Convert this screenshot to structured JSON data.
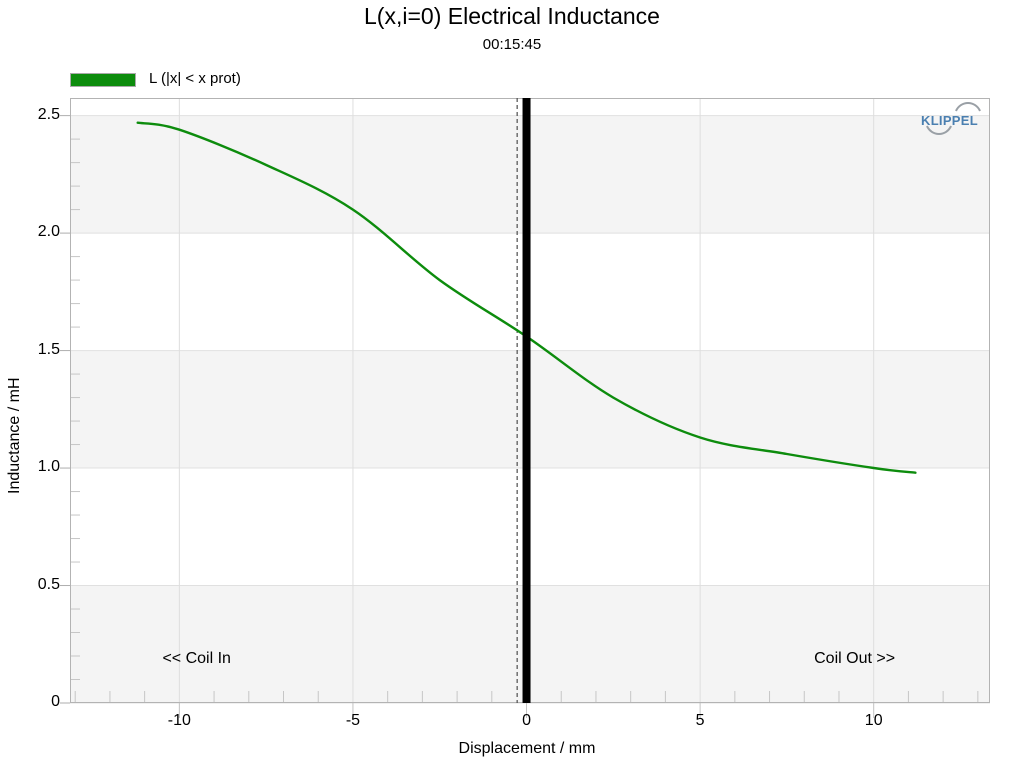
{
  "header": {
    "title": "L(x,i=0) Electrical Inductance",
    "subtitle": "00:15:45"
  },
  "legend": {
    "label": "L (|x| < x prot)",
    "color": "#0d8c0d"
  },
  "logo": {
    "text": "KLIPPEL",
    "text_color": "#4a7fb0",
    "arc_color": "#9aa0a6"
  },
  "annotations": {
    "coil_in": "<< Coil In",
    "coil_out": "Coil Out >>",
    "coil_in_x_mm": -9.5,
    "coil_out_x_mm": 9.45
  },
  "chart_data": {
    "type": "line",
    "title": "L(x,i=0) Electrical Inductance",
    "subtitle": "00:15:45",
    "xlabel": "Displacement / mm",
    "ylabel": "Inductance / mH",
    "xlim": [
      -13.15,
      13.35
    ],
    "ylim": [
      0,
      2.575
    ],
    "x_major_ticks": [
      -10,
      -5,
      0,
      5,
      10
    ],
    "x_tick_labels": [
      "-10",
      "-5",
      "0",
      "5",
      "10"
    ],
    "y_major_ticks": [
      0,
      0.5,
      1.0,
      1.5,
      2.0,
      2.5
    ],
    "y_tick_labels": [
      "0",
      "0.5",
      "1.0",
      "1.5",
      "2.0",
      "2.5"
    ],
    "x_minor_step": 1,
    "y_minor_step": 0.1,
    "grid": true,
    "legend_position": "top-left",
    "shaded_y_bands": [
      [
        2.0,
        2.5
      ],
      [
        1.0,
        1.5
      ],
      [
        0,
        0.5
      ]
    ],
    "markers": {
      "solid_vline_x": 0,
      "dashed_vline_x": -0.27
    },
    "series": [
      {
        "name": "L (|x| < x prot)",
        "color": "#0d8c0d",
        "x": [
          -11.2,
          -10,
          -7.5,
          -5,
          -2.5,
          0,
          2.5,
          5,
          7.5,
          10,
          11.2
        ],
        "y": [
          2.47,
          2.44,
          2.29,
          2.1,
          1.8,
          1.56,
          1.3,
          1.13,
          1.06,
          1.0,
          0.98
        ]
      }
    ]
  }
}
